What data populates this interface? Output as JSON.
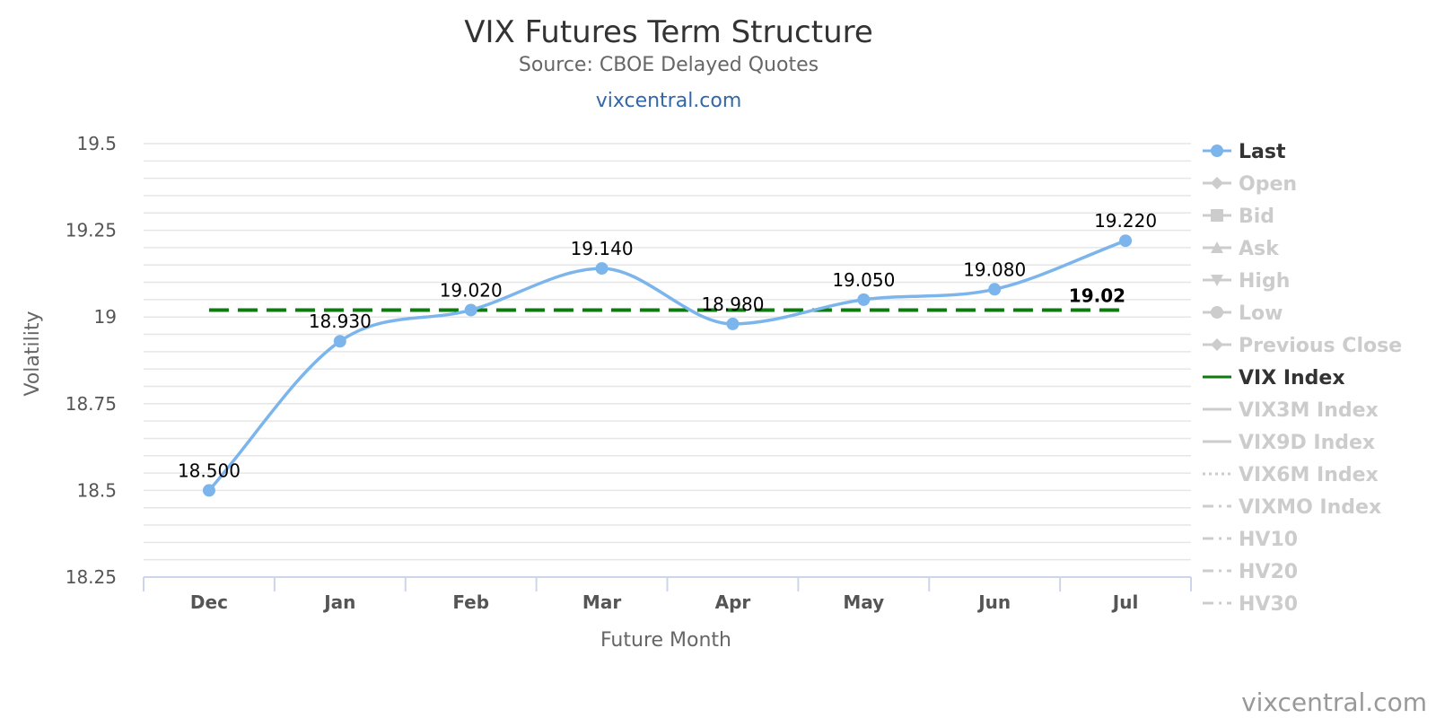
{
  "chart_data": {
    "type": "line",
    "title": "VIX Futures Term Structure",
    "subtitle": "Source: CBOE Delayed Quotes",
    "site_link": "vixcentral.com",
    "credit": "vixcentral.com",
    "xlabel": "Future Month",
    "ylabel": "Volatility",
    "categories": [
      "Dec",
      "Jan",
      "Feb",
      "Mar",
      "Apr",
      "May",
      "Jun",
      "Jul"
    ],
    "ylim": [
      18.25,
      19.5
    ],
    "yticks": [
      "18.25",
      "18.5",
      "18.75",
      "19",
      "19.25",
      "19.5"
    ],
    "grid": true,
    "legend_position": "right",
    "series": [
      {
        "name": "Last",
        "values": [
          18.5,
          18.93,
          19.02,
          19.14,
          18.98,
          19.05,
          19.08,
          19.22
        ],
        "value_labels": [
          "18.500",
          "18.930",
          "19.020",
          "19.140",
          "18.980",
          "19.050",
          "19.080",
          "19.220"
        ],
        "color": "#7cb5ec",
        "style": "smooth-line-with-markers"
      },
      {
        "name": "VIX Index",
        "value": 19.02,
        "value_label": "19.02",
        "color": "#0f7a0f",
        "style": "dashed-line"
      }
    ],
    "legend": [
      {
        "name": "Last",
        "active": true,
        "symbol": "circle",
        "line": "solid",
        "color": "#7cb5ec"
      },
      {
        "name": "Open",
        "active": false,
        "symbol": "diamond",
        "line": "solid"
      },
      {
        "name": "Bid",
        "active": false,
        "symbol": "square",
        "line": "solid"
      },
      {
        "name": "Ask",
        "active": false,
        "symbol": "triangle",
        "line": "solid"
      },
      {
        "name": "High",
        "active": false,
        "symbol": "triangle-down",
        "line": "solid"
      },
      {
        "name": "Low",
        "active": false,
        "symbol": "circle",
        "line": "solid"
      },
      {
        "name": "Previous Close",
        "active": false,
        "symbol": "diamond",
        "line": "solid"
      },
      {
        "name": "VIX Index",
        "active": true,
        "symbol": "none",
        "line": "solid",
        "color": "#0f7a0f"
      },
      {
        "name": "VIX3M Index",
        "active": false,
        "symbol": "none",
        "line": "solid"
      },
      {
        "name": "VIX9D Index",
        "active": false,
        "symbol": "none",
        "line": "solid"
      },
      {
        "name": "VIX6M Index",
        "active": false,
        "symbol": "none",
        "line": "dotted"
      },
      {
        "name": "VIXMO Index",
        "active": false,
        "symbol": "none",
        "line": "dashdot"
      },
      {
        "name": "HV10",
        "active": false,
        "symbol": "none",
        "line": "dashdot"
      },
      {
        "name": "HV20",
        "active": false,
        "symbol": "none",
        "line": "dashdot"
      },
      {
        "name": "HV30",
        "active": false,
        "symbol": "none",
        "line": "dashdot"
      }
    ],
    "colors": {
      "grid": "#e6e6e6",
      "axis": "#ccd6eb",
      "legend_inactive": "#cccccc",
      "legend_active_text": "#333333"
    }
  }
}
